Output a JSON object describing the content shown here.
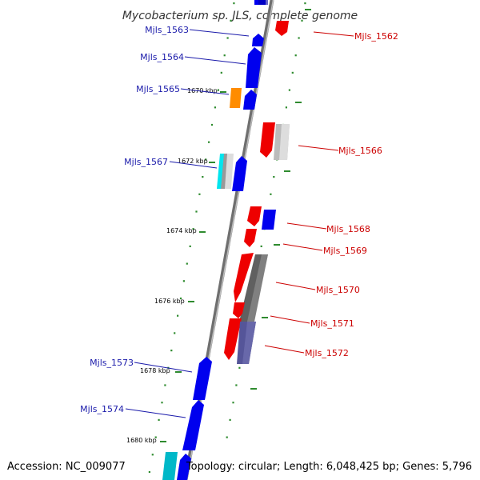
{
  "title": "Mycobacterium sp. JLS, complete genome",
  "footer": {
    "accession": "Accession: NC_009077",
    "topology": "Topology: circular; Length: 6,048,425 bp; Genes: 5,796"
  },
  "colors": {
    "backbone": "#888888",
    "tick": "#2e8b2e",
    "left_label": "#1a1aaa",
    "right_label": "#cc0000",
    "forward": "#0000ee",
    "reverse": "#ee0000",
    "orange": "#ff8c00",
    "cyan": "#00e5ee",
    "light_gray": "#cccccc",
    "dark_gray": "#666666",
    "purple": "#555599"
  },
  "kbp_labels": [
    "1670 kbp",
    "1672 kbp",
    "1674 kbp",
    "1676 kbp",
    "1678 kbp",
    "1680 kbp"
  ],
  "gene_labels_left": [
    "Mjls_1563",
    "Mjls_1564",
    "Mjls_1565",
    "Mjls_1567",
    "Mjls_1573",
    "Mjls_1574"
  ],
  "gene_labels_right": [
    "Mjls_1562",
    "Mjls_1566",
    "Mjls_1568",
    "Mjls_1569",
    "Mjls_1570",
    "Mjls_1571",
    "Mjls_1572"
  ]
}
